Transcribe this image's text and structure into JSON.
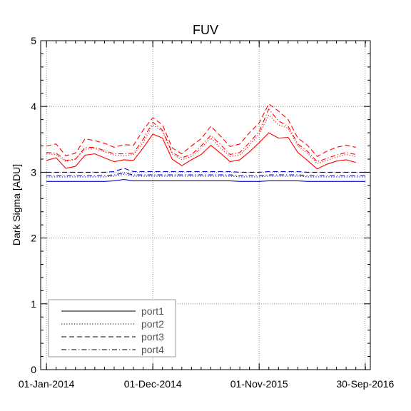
{
  "chart_data": {
    "type": "line",
    "title": "FUV",
    "xlabel": "",
    "ylabel": "Dark Sigma [ADU]",
    "x_unit": "months since 01-Jan-2014",
    "xlim": [
      -0.6,
      33.5
    ],
    "ylim": [
      0,
      5
    ],
    "yticks": [
      0,
      1,
      2,
      3,
      4,
      5
    ],
    "xticks": [
      {
        "value": 0,
        "label": "01-Jan-2014"
      },
      {
        "value": 11,
        "label": "01-Dec-2014"
      },
      {
        "value": 22,
        "label": "01-Nov-2015"
      },
      {
        "value": 32.97,
        "label": "30-Sep-2016"
      }
    ],
    "grid": true,
    "legend": {
      "position": "bottom-left",
      "entries": [
        "port1",
        "port2",
        "port3",
        "port4"
      ]
    },
    "colors": {
      "red_series": "#ff0000",
      "blue_series": "#0000cc",
      "axis": "#000000",
      "grid": "#777777"
    },
    "series": [
      {
        "name": "port1",
        "group": "red",
        "dash": "solid",
        "x": [
          0,
          1,
          2,
          3,
          4,
          5,
          6,
          7,
          8,
          9,
          10,
          11,
          12,
          13,
          14,
          15,
          16,
          17,
          18,
          19,
          20,
          21,
          22,
          23,
          24,
          25,
          26,
          27,
          28,
          29,
          30,
          31,
          32,
          33
        ],
        "values": [
          3.18,
          3.22,
          3.06,
          3.09,
          3.26,
          3.28,
          3.22,
          3.16,
          3.19,
          3.18,
          3.37,
          3.58,
          3.52,
          3.2,
          3.1,
          3.19,
          3.27,
          3.41,
          3.29,
          3.16,
          3.19,
          3.31,
          3.45,
          3.6,
          3.52,
          3.53,
          3.3,
          3.18,
          3.05,
          3.12,
          3.17,
          3.19,
          3.15,
          null
        ]
      },
      {
        "name": "port2",
        "group": "red",
        "dash": "dotted",
        "x": [
          0,
          1,
          2,
          3,
          4,
          5,
          6,
          7,
          8,
          9,
          10,
          11,
          12,
          13,
          14,
          15,
          16,
          17,
          18,
          19,
          20,
          21,
          22,
          23,
          24,
          25,
          26,
          27,
          28,
          29,
          30,
          31,
          32,
          33
        ],
        "values": [
          3.28,
          3.27,
          3.16,
          3.2,
          3.35,
          3.36,
          3.31,
          3.26,
          3.25,
          3.27,
          3.45,
          3.72,
          3.62,
          3.28,
          3.19,
          3.24,
          3.37,
          3.52,
          3.37,
          3.24,
          3.26,
          3.41,
          3.58,
          3.87,
          3.72,
          3.67,
          3.4,
          3.29,
          3.13,
          3.18,
          3.23,
          3.27,
          3.24,
          null
        ]
      },
      {
        "name": "port3",
        "group": "red",
        "dash": "dashed",
        "x": [
          0,
          1,
          2,
          3,
          4,
          5,
          6,
          7,
          8,
          9,
          10,
          11,
          12,
          13,
          14,
          15,
          16,
          17,
          18,
          19,
          20,
          21,
          22,
          23,
          24,
          25,
          26,
          27,
          28,
          29,
          30,
          31,
          32,
          33
        ],
        "values": [
          3.4,
          3.43,
          3.25,
          3.29,
          3.51,
          3.48,
          3.44,
          3.38,
          3.42,
          3.41,
          3.64,
          3.83,
          3.72,
          3.37,
          3.28,
          3.4,
          3.51,
          3.7,
          3.55,
          3.39,
          3.43,
          3.6,
          3.75,
          4.04,
          3.93,
          3.8,
          3.52,
          3.41,
          3.24,
          3.32,
          3.38,
          3.41,
          3.38,
          null
        ]
      },
      {
        "name": "port4",
        "group": "red",
        "dash": "dashdot",
        "x": [
          0,
          1,
          2,
          3,
          4,
          5,
          6,
          7,
          8,
          9,
          10,
          11,
          12,
          13,
          14,
          15,
          16,
          17,
          18,
          19,
          20,
          21,
          22,
          23,
          24,
          25,
          26,
          27,
          28,
          29,
          30,
          31,
          32,
          33
        ],
        "values": [
          3.3,
          3.29,
          3.18,
          3.2,
          3.38,
          3.38,
          3.33,
          3.28,
          3.28,
          3.29,
          3.5,
          3.76,
          3.64,
          3.3,
          3.22,
          3.27,
          3.4,
          3.56,
          3.42,
          3.27,
          3.3,
          3.45,
          3.62,
          3.96,
          3.78,
          3.7,
          3.43,
          3.32,
          3.16,
          3.21,
          3.26,
          3.3,
          3.27,
          null
        ]
      },
      {
        "name": "port1",
        "group": "blue",
        "dash": "solid",
        "x": [
          0,
          1,
          2,
          3,
          4,
          5,
          6,
          7,
          8,
          9,
          10,
          11,
          12,
          13,
          14,
          15,
          16,
          17,
          18,
          19,
          20,
          21,
          22,
          23,
          24,
          25,
          26,
          27,
          28,
          29,
          30,
          31,
          32,
          33
        ],
        "values": [
          2.86,
          2.86,
          2.86,
          2.86,
          2.86,
          2.86,
          2.86,
          2.87,
          2.89,
          2.87,
          2.87,
          2.87,
          2.87,
          2.87,
          2.87,
          2.87,
          2.87,
          2.87,
          2.87,
          2.87,
          2.86,
          2.86,
          2.86,
          2.87,
          2.87,
          2.87,
          2.87,
          2.86,
          2.86,
          2.86,
          2.86,
          2.86,
          2.86,
          2.86
        ]
      },
      {
        "name": "port2",
        "group": "blue",
        "dash": "dotted",
        "x": [
          0,
          1,
          2,
          3,
          4,
          5,
          6,
          7,
          8,
          9,
          10,
          11,
          12,
          13,
          14,
          15,
          16,
          17,
          18,
          19,
          20,
          21,
          22,
          23,
          24,
          25,
          26,
          27,
          28,
          29,
          30,
          31,
          32,
          33
        ],
        "values": [
          2.93,
          2.93,
          2.93,
          2.93,
          2.93,
          2.93,
          2.93,
          2.94,
          2.97,
          2.94,
          2.94,
          2.94,
          2.94,
          2.94,
          2.94,
          2.94,
          2.94,
          2.94,
          2.94,
          2.94,
          2.93,
          2.93,
          2.93,
          2.94,
          2.94,
          2.94,
          2.94,
          2.93,
          2.93,
          2.93,
          2.93,
          2.93,
          2.93,
          2.93
        ]
      },
      {
        "name": "port3",
        "group": "blue",
        "dash": "dashed",
        "x": [
          0,
          1,
          2,
          3,
          4,
          5,
          6,
          7,
          8,
          9,
          10,
          11,
          12,
          13,
          14,
          15,
          16,
          17,
          18,
          19,
          20,
          21,
          22,
          23,
          24,
          25,
          26,
          27,
          28,
          29,
          30,
          31,
          32,
          33
        ],
        "values": [
          3.0,
          3.0,
          3.0,
          3.0,
          3.0,
          3.0,
          3.0,
          3.01,
          3.06,
          3.01,
          3.01,
          3.01,
          3.01,
          3.01,
          3.01,
          3.01,
          3.01,
          3.01,
          3.01,
          3.01,
          3.0,
          3.0,
          3.0,
          3.01,
          3.01,
          3.01,
          3.01,
          3.0,
          3.0,
          3.0,
          3.0,
          3.0,
          3.0,
          3.0
        ]
      },
      {
        "name": "port4",
        "group": "blue",
        "dash": "dashdot",
        "x": [
          0,
          1,
          2,
          3,
          4,
          5,
          6,
          7,
          8,
          9,
          10,
          11,
          12,
          13,
          14,
          15,
          16,
          17,
          18,
          19,
          20,
          21,
          22,
          23,
          24,
          25,
          26,
          27,
          28,
          29,
          30,
          31,
          32,
          33
        ],
        "values": [
          2.95,
          2.95,
          2.95,
          2.95,
          2.95,
          2.95,
          2.95,
          2.96,
          2.99,
          2.96,
          2.96,
          2.96,
          2.96,
          2.96,
          2.96,
          2.96,
          2.96,
          2.96,
          2.96,
          2.96,
          2.95,
          2.95,
          2.95,
          2.96,
          2.96,
          2.96,
          2.96,
          2.95,
          2.95,
          2.95,
          2.95,
          2.95,
          2.95,
          2.95
        ]
      }
    ]
  }
}
